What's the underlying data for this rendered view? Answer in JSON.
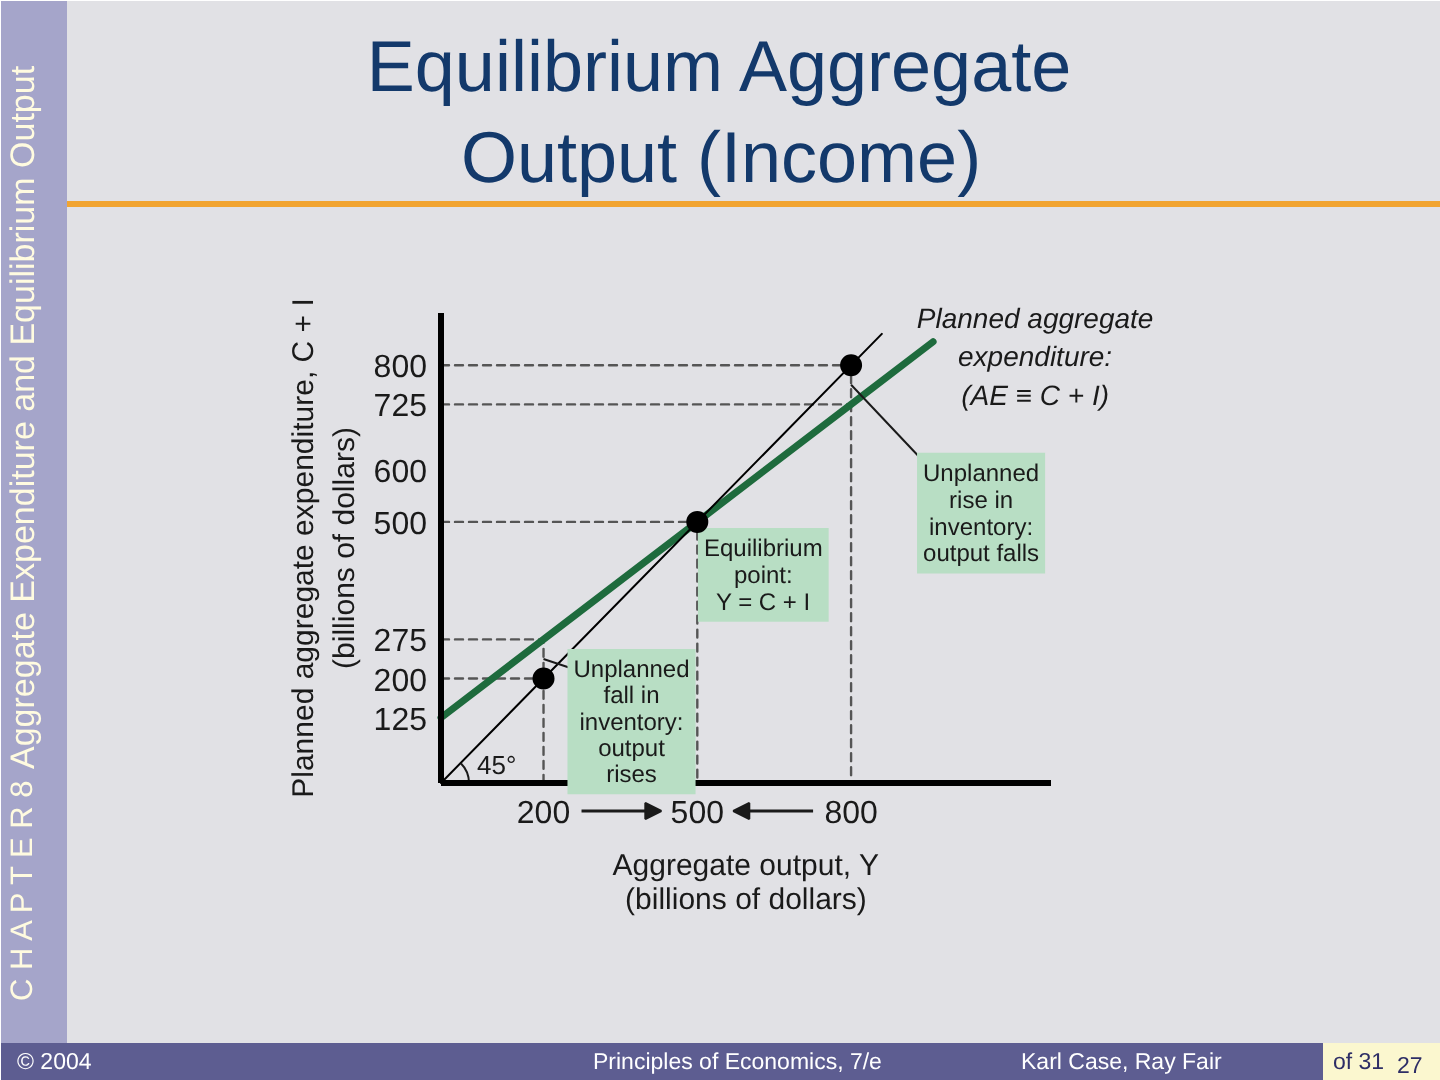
{
  "chart_data": {
    "type": "line",
    "title": "Equilibrium Aggregate\nOutput (Income)",
    "xlabel": "Aggregate output, Y\n(billions of dollars)",
    "ylabel": "Planned aggregate expenditure, C + I\n(billions of dollars)",
    "xlim": [
      0,
      1190
    ],
    "ylim": [
      0,
      900
    ],
    "xticks": [
      200,
      500,
      800
    ],
    "yticks": [
      125,
      200,
      275,
      500,
      600,
      725,
      800
    ],
    "grid": false,
    "line_style": "solid",
    "marker": "none",
    "series": [
      {
        "color": "#1e6b3d",
        "x": [
          0,
          200,
          500,
          800,
          960
        ],
        "values": [
          125,
          275,
          500,
          725,
          845
        ]
      },
      {
        "color": "#000000",
        "x": [
          0,
          860
        ],
        "values": [
          0,
          860
        ]
      },
      {
        "line_style": "dashed",
        "color": "#555555",
        "x": [
          0,
          200,
          200
        ],
        "values": [
          275,
          275,
          0
        ]
      },
      {
        "line_style": "dashed",
        "color": "#555555",
        "x": [
          0,
          200
        ],
        "values": [
          200,
          200
        ]
      },
      {
        "line_style": "dashed",
        "color": "#555555",
        "x": [
          0,
          500,
          500
        ],
        "values": [
          500,
          500,
          0
        ]
      },
      {
        "line_style": "dashed",
        "color": "#555555",
        "x": [
          0,
          800,
          800
        ],
        "values": [
          800,
          800,
          0
        ]
      },
      {
        "line_style": "dashed",
        "color": "#555555",
        "x": [
          0,
          800
        ],
        "values": [
          725,
          725
        ]
      },
      {
        "type": "scatter",
        "marker": "circle",
        "color": "#000000",
        "x": [
          200,
          500,
          800
        ],
        "values": [
          200,
          500,
          800
        ]
      }
    ],
    "annotations": [
      {
        "text": "Planned aggregate\nexpenditure:\n(AE ≡ C + I)",
        "x": 960,
        "y": 845
      },
      {
        "text": "Unplanned\nrise in\ninventory:\noutput falls",
        "x": 800,
        "y": 762.5
      },
      {
        "text": "Equilibrium\npoint:\nY = C + I",
        "x": 500,
        "y": 500
      },
      {
        "text": "Unplanned\nfall in\ninventory:\noutput\nrises",
        "x": 200,
        "y": 237.5
      },
      {
        "text": "45°",
        "x": 0,
        "y": 0
      },
      "C H A P T E R 8",
      "Aggregate Expenditure and Equilibrium Output",
      "© 2004",
      "Principles of Economics, 7/e",
      "Karl Case, Ray Fair",
      "of 31",
      "27"
    ]
  }
}
